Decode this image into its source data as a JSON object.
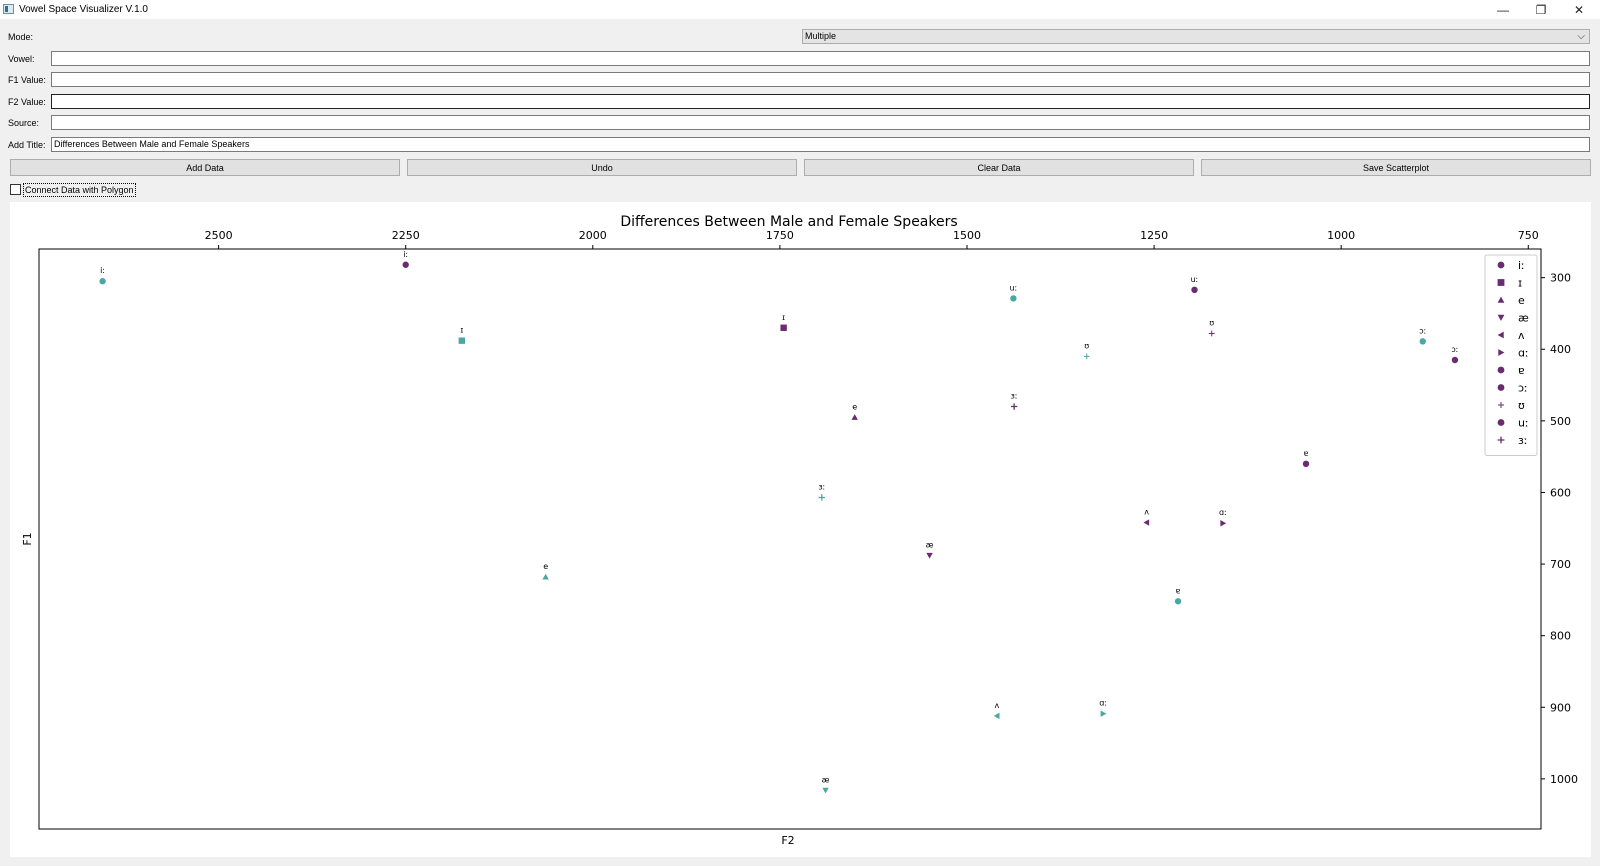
{
  "window": {
    "title": "Vowel Space Visualizer V.1.0",
    "minimize_glyph": "—",
    "restore_glyph": "❐",
    "close_glyph": "✕"
  },
  "form": {
    "mode_label": "Mode:",
    "mode_value": "Multiple",
    "mode_chevron": "⌵",
    "vowel_label": "Vowel:",
    "vowel_value": "",
    "f1_label": "F1 Value:",
    "f1_value": "",
    "f2_label": "F2 Value:",
    "f2_value": "",
    "source_label": "Source:",
    "source_value": "",
    "title_label": "Add Title:",
    "title_value": "Differences Between Male and Female Speakers"
  },
  "buttons": {
    "add": "Add Data",
    "undo": "Undo",
    "clear": "Clear Data",
    "save": "Save Scatterplot"
  },
  "polygon_checkbox": {
    "label": "Connect Data with Polygon",
    "checked": false
  },
  "colors": {
    "purple": "#6a2c70",
    "teal": "#4aa8a3"
  },
  "chart_data": {
    "type": "scatter",
    "title": "Differences Between Male and Female Speakers",
    "xlabel": "F2",
    "ylabel": "F1",
    "x_axis": "top, inverted",
    "y_axis": "right, inverted",
    "xlim": [
      2740,
      733
    ],
    "ylim": [
      260,
      1070
    ],
    "xticks": [
      2500,
      2250,
      2000,
      1750,
      1500,
      1250,
      1000,
      750
    ],
    "yticks": [
      300,
      400,
      500,
      600,
      700,
      800,
      900,
      1000
    ],
    "legend_position": "top-right",
    "legend": [
      {
        "symbol": "circle",
        "label": "iː"
      },
      {
        "symbol": "square",
        "label": "ɪ"
      },
      {
        "symbol": "triangle-up",
        "label": "e"
      },
      {
        "symbol": "triangle-down",
        "label": "æ"
      },
      {
        "symbol": "triangle-left",
        "label": "ʌ"
      },
      {
        "symbol": "triangle-right",
        "label": "ɑː"
      },
      {
        "symbol": "circle",
        "label": "ɐ"
      },
      {
        "symbol": "circle",
        "label": "ɔː"
      },
      {
        "symbol": "star",
        "label": "ʊ"
      },
      {
        "symbol": "circle",
        "label": "uː"
      },
      {
        "symbol": "plus",
        "label": "ɜː"
      }
    ],
    "series": [
      {
        "color": "purple",
        "points": [
          {
            "label": "iː",
            "symbol": "circle",
            "x": 2250,
            "y": 282
          },
          {
            "label": "ɪ",
            "symbol": "square",
            "x": 1745,
            "y": 370
          },
          {
            "label": "e",
            "symbol": "triangle-up",
            "x": 1650,
            "y": 495
          },
          {
            "label": "æ",
            "symbol": "triangle-down",
            "x": 1550,
            "y": 688
          },
          {
            "label": "ʌ",
            "symbol": "triangle-left",
            "x": 1260,
            "y": 642
          },
          {
            "label": "ɑː",
            "symbol": "triangle-right",
            "x": 1158,
            "y": 643
          },
          {
            "label": "ɐ",
            "symbol": "circle",
            "x": 1047,
            "y": 560
          },
          {
            "label": "ɔː",
            "symbol": "circle",
            "x": 848,
            "y": 415
          },
          {
            "label": "ʊ",
            "symbol": "star",
            "x": 1173,
            "y": 378
          },
          {
            "label": "uː",
            "symbol": "circle",
            "x": 1196,
            "y": 317
          },
          {
            "label": "ɜː",
            "symbol": "plus",
            "x": 1437,
            "y": 480
          }
        ]
      },
      {
        "color": "teal",
        "points": [
          {
            "label": "iː",
            "symbol": "circle",
            "x": 2655,
            "y": 305
          },
          {
            "label": "ɪ",
            "symbol": "square",
            "x": 2175,
            "y": 388
          },
          {
            "label": "e",
            "symbol": "triangle-up",
            "x": 2063,
            "y": 718
          },
          {
            "label": "æ",
            "symbol": "triangle-down",
            "x": 1689,
            "y": 1016
          },
          {
            "label": "ʌ",
            "symbol": "triangle-left",
            "x": 1460,
            "y": 912
          },
          {
            "label": "ɑː",
            "symbol": "triangle-right",
            "x": 1318,
            "y": 909
          },
          {
            "label": "ɐ",
            "symbol": "circle",
            "x": 1218,
            "y": 752
          },
          {
            "label": "ɔː",
            "symbol": "circle",
            "x": 891,
            "y": 389
          },
          {
            "label": "ʊ",
            "symbol": "star",
            "x": 1340,
            "y": 410
          },
          {
            "label": "uː",
            "symbol": "circle",
            "x": 1438,
            "y": 329
          },
          {
            "label": "ɜː",
            "symbol": "plus",
            "x": 1694,
            "y": 607
          }
        ]
      }
    ]
  }
}
